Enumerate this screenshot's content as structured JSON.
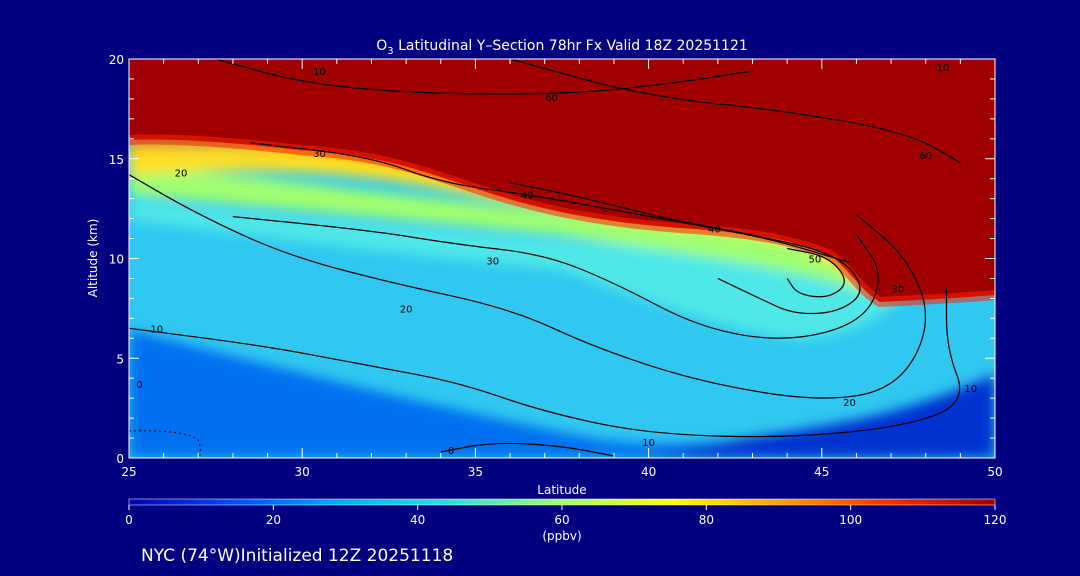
{
  "chart_data": {
    "type": "heatmap",
    "title_prefix": "O",
    "title_sub": "3",
    "title_rest": " Latitudinal Y–Section 78hr  Fx Valid 18Z 20251121",
    "xlabel": "Latitude",
    "ylabel": "Altitude (km)",
    "xlim": [
      25,
      50
    ],
    "ylim": [
      0,
      20
    ],
    "x_ticks": [
      25,
      30,
      35,
      40,
      45,
      50
    ],
    "y_ticks": [
      0,
      5,
      10,
      15,
      20
    ],
    "x_ticks_labels": [
      "25",
      "30",
      "35",
      "40",
      "45",
      "50"
    ],
    "y_ticks_labels": [
      "0",
      "5",
      "10",
      "15",
      "20"
    ],
    "colorbar": {
      "label": "(ppbv)",
      "range": [
        0,
        120
      ],
      "ticks": [
        0,
        20,
        40,
        60,
        80,
        100,
        120
      ],
      "tick_labels": [
        "0",
        "20",
        "40",
        "60",
        "80",
        "100",
        "120"
      ],
      "colors": [
        "#0000b4",
        "#0050ff",
        "#00b0ff",
        "#30e0e0",
        "#a0ff70",
        "#ffff00",
        "#ffa000",
        "#ff3000",
        "#a00000"
      ]
    },
    "contours": [
      {
        "level": "0",
        "points": [
          [
            34,
            0.3
          ],
          [
            35.5,
            0.8
          ],
          [
            37.5,
            0.6
          ],
          [
            39,
            0.1
          ]
        ]
      },
      {
        "level": "10",
        "points": [
          [
            25,
            6.5
          ],
          [
            29,
            5.6
          ],
          [
            32,
            4.6
          ],
          [
            34.5,
            3.8
          ],
          [
            37,
            2.3
          ],
          [
            40,
            1.2
          ],
          [
            44,
            1.0
          ],
          [
            47.5,
            1.6
          ],
          [
            49.2,
            2.8
          ],
          [
            48.6,
            5.5
          ],
          [
            48.6,
            8.5
          ]
        ]
      },
      {
        "level": "20",
        "points": [
          [
            25,
            14.2
          ],
          [
            27,
            12.2
          ],
          [
            29.5,
            10.2
          ],
          [
            32.5,
            8.8
          ],
          [
            36,
            7.5
          ],
          [
            38.5,
            5.5
          ],
          [
            41.5,
            3.8
          ],
          [
            45,
            2.8
          ],
          [
            47.2,
            3.5
          ],
          [
            48.2,
            6.8
          ],
          [
            47.5,
            10
          ],
          [
            46,
            12.2
          ]
        ]
      },
      {
        "level": "30",
        "points": [
          [
            28,
            12.1
          ],
          [
            32,
            11.4
          ],
          [
            34.5,
            10.7
          ],
          [
            37,
            10.2
          ],
          [
            39,
            8.8
          ],
          [
            41.5,
            6.5
          ],
          [
            44,
            5.8
          ],
          [
            46.2,
            6.8
          ],
          [
            46.8,
            9.2
          ],
          [
            46,
            11.2
          ]
        ]
      },
      {
        "level": "40",
        "points": [
          [
            36,
            13.8
          ],
          [
            38,
            13.1
          ],
          [
            40.5,
            12
          ],
          [
            43,
            11.2
          ],
          [
            45.5,
            10.2
          ],
          [
            46.3,
            8.4
          ],
          [
            45.5,
            7.3
          ],
          [
            44.2,
            7.2
          ],
          [
            43.2,
            8
          ],
          [
            42,
            9
          ]
        ]
      },
      {
        "level": "50",
        "points": [
          [
            44,
            10.5
          ],
          [
            45.2,
            10.1
          ],
          [
            45.8,
            8.8
          ],
          [
            45.2,
            8
          ],
          [
            44.3,
            8.2
          ],
          [
            44,
            9
          ]
        ]
      },
      {
        "level": "60",
        "points": [
          [
            28.5,
            15.8
          ],
          [
            32,
            15.1
          ],
          [
            34,
            13.8
          ],
          [
            36.5,
            13.2
          ],
          [
            38.5,
            12.6
          ],
          [
            41,
            11.8
          ],
          [
            43.5,
            11
          ],
          [
            45.8,
            9.8
          ]
        ]
      },
      {
        "level": "10",
        "points": [
          [
            27.5,
            20
          ],
          [
            30,
            18.8
          ],
          [
            33,
            18.3
          ],
          [
            37,
            18.2
          ],
          [
            40,
            18.6
          ],
          [
            43,
            19.4
          ]
        ]
      },
      {
        "level": "60",
        "points": [
          [
            36,
            20
          ],
          [
            40,
            18.1
          ],
          [
            44,
            17.4
          ],
          [
            47.5,
            16.3
          ],
          [
            49,
            14.8
          ]
        ]
      }
    ],
    "contour_labels": [
      {
        "text": "20",
        "x": 26.5,
        "y": 14.3
      },
      {
        "text": "30",
        "x": 30.5,
        "y": 15.3
      },
      {
        "text": "40",
        "x": 36.5,
        "y": 13.2
      },
      {
        "text": "40",
        "x": 41.9,
        "y": 11.5
      },
      {
        "text": "50",
        "x": 44.8,
        "y": 10
      },
      {
        "text": "30",
        "x": 35.5,
        "y": 9.9
      },
      {
        "text": "20",
        "x": 33,
        "y": 7.5
      },
      {
        "text": "10",
        "x": 25.8,
        "y": 6.5
      },
      {
        "text": "0",
        "x": 25.3,
        "y": 3.7
      },
      {
        "text": "0",
        "x": 34.3,
        "y": 0.4
      },
      {
        "text": "10",
        "x": 40,
        "y": 0.8
      },
      {
        "text": "20",
        "x": 45.8,
        "y": 2.8
      },
      {
        "text": "30",
        "x": 47.2,
        "y": 8.5
      },
      {
        "text": "10",
        "x": 49.3,
        "y": 3.5
      },
      {
        "text": "10",
        "x": 30.5,
        "y": 19.4
      },
      {
        "text": "60",
        "x": 37.2,
        "y": 18.1
      },
      {
        "text": "60",
        "x": 48,
        "y": 15.2
      },
      {
        "text": "10",
        "x": 48.5,
        "y": 19.6
      }
    ]
  },
  "footer": {
    "caption": "NYC (74°W)Initialized 12Z 20251118"
  },
  "colors": {
    "background": "#000080",
    "text": "#ffffff",
    "contour": "#000000"
  }
}
